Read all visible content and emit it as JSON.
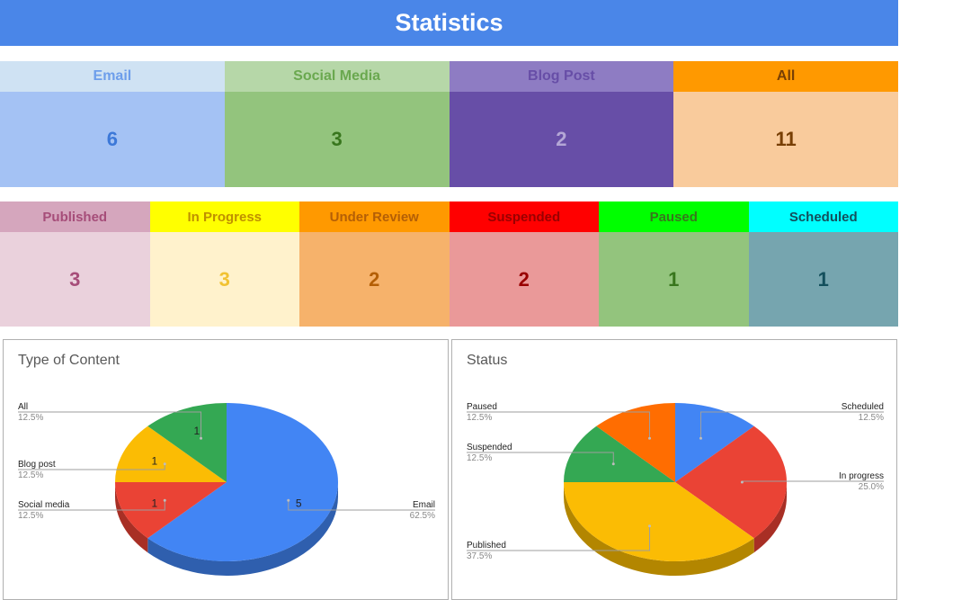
{
  "header": {
    "title": "Statistics"
  },
  "type_tiles": [
    {
      "label": "Email",
      "value": "6",
      "head_bg": "#cfe2f3",
      "head_fg": "#6d9eeb",
      "val_bg": "#a4c2f4",
      "val_fg": "#3c78d8"
    },
    {
      "label": "Social Media",
      "value": "3",
      "head_bg": "#b6d7a8",
      "head_fg": "#6aa84f",
      "val_bg": "#93c47d",
      "val_fg": "#38761d"
    },
    {
      "label": "Blog Post",
      "value": "2",
      "head_bg": "#8e7cc3",
      "head_fg": "#674ea7",
      "val_bg": "#674ea7",
      "val_fg": "#b4a7d6"
    },
    {
      "label": "All",
      "value": "11",
      "head_bg": "#ff9900",
      "head_fg": "#783f04",
      "val_bg": "#f9cb9c",
      "val_fg": "#783f04"
    }
  ],
  "status_tiles": [
    {
      "label": "Published",
      "value": "3",
      "head_bg": "#d5a6bd",
      "head_fg": "#a64d79",
      "val_bg": "#ead1dc",
      "val_fg": "#a64d79"
    },
    {
      "label": "In Progress",
      "value": "3",
      "head_bg": "#ffff00",
      "head_fg": "#bf9000",
      "val_bg": "#fff2cc",
      "val_fg": "#f1c232"
    },
    {
      "label": "Under Review",
      "value": "2",
      "head_bg": "#ff9900",
      "head_fg": "#b45f06",
      "val_bg": "#f6b26b",
      "val_fg": "#b45f06"
    },
    {
      "label": "Suspended",
      "value": "2",
      "head_bg": "#ff0000",
      "head_fg": "#990000",
      "val_bg": "#ea9999",
      "val_fg": "#990000"
    },
    {
      "label": "Paused",
      "value": "1",
      "head_bg": "#00ff00",
      "head_fg": "#38761d",
      "val_bg": "#93c47d",
      "val_fg": "#38761d"
    },
    {
      "label": "Scheduled",
      "value": "1",
      "head_bg": "#00ffff",
      "head_fg": "#134f5c",
      "val_bg": "#76a5af",
      "val_fg": "#134f5c"
    }
  ],
  "chart_data": [
    {
      "type": "pie",
      "title": "Type of Content",
      "slices": [
        {
          "label": "Email",
          "value": 5,
          "percent": "62.5%",
          "color": "#4285f4",
          "shade": "#2f5fae",
          "data_label": "5",
          "side": "right"
        },
        {
          "label": "Social media",
          "value": 1,
          "percent": "12.5%",
          "color": "#ea4335",
          "shade": "#a82f25",
          "data_label": "1",
          "side": "left"
        },
        {
          "label": "Blog post",
          "value": 1,
          "percent": "12.5%",
          "color": "#fbbc04",
          "shade": "#b38600",
          "data_label": "1",
          "side": "left"
        },
        {
          "label": "All",
          "value": 1,
          "percent": "12.5%",
          "color": "#34a853",
          "shade": "#25783b",
          "data_label": "1",
          "side": "left"
        }
      ],
      "legend": "labeled-lines",
      "style": "3d"
    },
    {
      "type": "pie",
      "title": "Status",
      "slices": [
        {
          "label": "Scheduled",
          "value": 1,
          "percent": "12.5%",
          "color": "#4285f4",
          "shade": "#2f5fae",
          "data_label": "",
          "side": "right"
        },
        {
          "label": "In progress",
          "value": 2,
          "percent": "25.0%",
          "color": "#ea4335",
          "shade": "#a82f25",
          "data_label": "",
          "side": "right"
        },
        {
          "label": "Published",
          "value": 3,
          "percent": "37.5%",
          "color": "#fbbc04",
          "shade": "#b38600",
          "data_label": "",
          "side": "left"
        },
        {
          "label": "Suspended",
          "value": 1,
          "percent": "12.5%",
          "color": "#34a853",
          "shade": "#25783b",
          "data_label": "",
          "side": "left"
        },
        {
          "label": "Paused",
          "value": 1,
          "percent": "12.5%",
          "color": "#ff6d01",
          "shade": "#b34c00",
          "data_label": "",
          "side": "left"
        }
      ],
      "legend": "labeled-lines",
      "style": "3d"
    }
  ]
}
